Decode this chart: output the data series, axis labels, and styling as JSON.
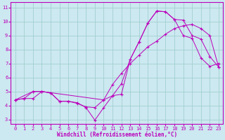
{
  "xlabel": "Windchill (Refroidissement éolien,°C)",
  "bg_color": "#cce8f0",
  "line_color": "#bb00bb",
  "grid_color": "#99cccc",
  "xlim_min": -0.5,
  "xlim_max": 23.5,
  "ylim_min": 2.7,
  "ylim_max": 11.4,
  "xticks": [
    0,
    1,
    2,
    3,
    4,
    5,
    6,
    7,
    8,
    9,
    10,
    11,
    12,
    13,
    14,
    15,
    16,
    17,
    18,
    19,
    20,
    21,
    22,
    23
  ],
  "yticks": [
    3,
    4,
    5,
    6,
    7,
    8,
    9,
    10,
    11
  ],
  "line1_x": [
    0,
    1,
    2,
    3,
    4,
    5,
    6,
    7,
    8,
    9,
    10,
    11,
    12,
    13,
    14,
    15,
    16,
    17,
    18,
    19,
    20,
    21,
    22,
    23
  ],
  "line1_y": [
    4.4,
    4.5,
    5.0,
    5.0,
    4.9,
    4.3,
    4.3,
    4.2,
    3.85,
    2.95,
    3.85,
    4.7,
    4.8,
    7.3,
    8.55,
    9.9,
    10.75,
    10.7,
    10.15,
    10.1,
    9.0,
    8.75,
    7.5,
    6.75
  ],
  "line2_x": [
    0,
    2,
    3,
    10,
    11,
    12,
    13,
    14,
    15,
    16,
    17,
    18,
    19,
    20,
    21,
    22,
    23
  ],
  "line2_y": [
    4.4,
    5.0,
    5.0,
    4.4,
    5.5,
    6.3,
    7.0,
    7.6,
    8.2,
    8.6,
    9.1,
    9.5,
    9.7,
    9.8,
    9.5,
    9.0,
    6.75
  ],
  "line3_x": [
    0,
    1,
    2,
    3,
    4,
    5,
    6,
    7,
    8,
    9,
    10,
    11,
    12,
    13,
    14,
    15,
    16,
    17,
    18,
    19,
    20,
    21,
    22,
    23
  ],
  "line3_y": [
    4.4,
    4.5,
    4.5,
    5.0,
    4.9,
    4.3,
    4.3,
    4.15,
    3.9,
    3.85,
    4.4,
    4.7,
    5.55,
    7.3,
    8.55,
    9.9,
    10.75,
    10.7,
    10.15,
    9.0,
    8.8,
    7.4,
    6.8,
    7.0
  ]
}
